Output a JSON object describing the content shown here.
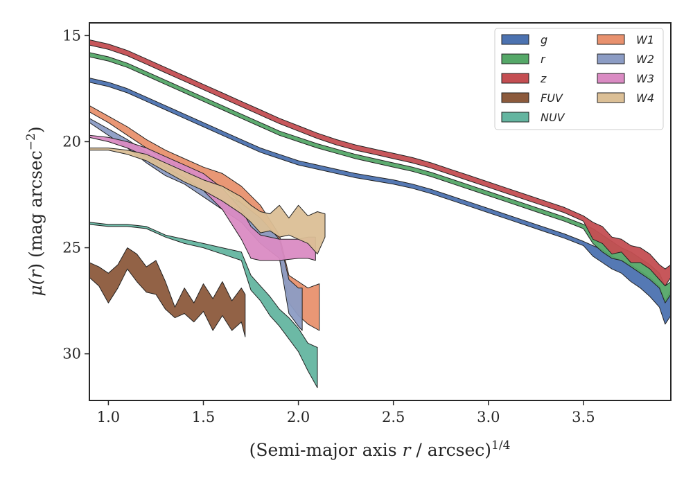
{
  "chart_data": {
    "type": "area",
    "xlabel": {
      "pre": "(Semi-major axis ",
      "var": "r",
      "post": " / arcsec)",
      "sup": "1/4"
    },
    "ylabel": {
      "pre": "μ(",
      "var": "r",
      "post": ") (mag arcsec",
      "sup": "−2",
      "end": ")"
    },
    "xlim": [
      0.9,
      3.96
    ],
    "ylim": [
      32.2,
      14.4
    ],
    "y_inverted": true,
    "x_ticks": [
      1.0,
      1.5,
      2.0,
      2.5,
      3.0,
      3.5
    ],
    "x_tick_labels": [
      "1.0",
      "1.5",
      "2.0",
      "2.5",
      "3.0",
      "3.5"
    ],
    "y_ticks": [
      15,
      20,
      25,
      30
    ],
    "y_tick_labels": [
      "15",
      "20",
      "25",
      "30"
    ],
    "grid": false,
    "legend": {
      "position": "top-right",
      "columns": 2
    },
    "series": [
      {
        "name": "g",
        "color": "#4c72b0",
        "x": [
          0.9,
          1.0,
          1.1,
          1.2,
          1.3,
          1.4,
          1.5,
          1.6,
          1.7,
          1.8,
          1.9,
          2.0,
          2.1,
          2.2,
          2.3,
          2.4,
          2.5,
          2.6,
          2.7,
          2.8,
          2.9,
          3.0,
          3.1,
          3.2,
          3.3,
          3.4,
          3.5,
          3.55,
          3.6,
          3.65,
          3.7,
          3.75,
          3.8,
          3.85,
          3.9,
          3.93,
          3.96
        ],
        "lo": [
          17.0,
          17.2,
          17.5,
          17.9,
          18.3,
          18.7,
          19.1,
          19.5,
          19.9,
          20.3,
          20.6,
          20.9,
          21.1,
          21.3,
          21.5,
          21.65,
          21.8,
          22.0,
          22.25,
          22.55,
          22.85,
          23.15,
          23.45,
          23.75,
          24.05,
          24.35,
          24.7,
          24.9,
          25.1,
          25.4,
          25.6,
          25.8,
          26.1,
          26.4,
          26.8,
          27.5,
          27.0
        ],
        "hi": [
          17.2,
          17.4,
          17.7,
          18.1,
          18.5,
          18.9,
          19.3,
          19.7,
          20.1,
          20.5,
          20.8,
          21.1,
          21.3,
          21.5,
          21.7,
          21.85,
          22.0,
          22.2,
          22.45,
          22.75,
          23.05,
          23.35,
          23.65,
          23.95,
          24.25,
          24.55,
          24.9,
          25.4,
          25.7,
          26.0,
          26.2,
          26.6,
          26.9,
          27.3,
          27.8,
          28.6,
          28.2
        ]
      },
      {
        "name": "r",
        "color": "#55a868",
        "x": [
          0.9,
          1.0,
          1.1,
          1.2,
          1.3,
          1.4,
          1.5,
          1.6,
          1.7,
          1.8,
          1.9,
          2.0,
          2.1,
          2.2,
          2.3,
          2.4,
          2.5,
          2.6,
          2.7,
          2.8,
          2.9,
          3.0,
          3.1,
          3.2,
          3.3,
          3.4,
          3.5,
          3.55,
          3.6,
          3.65,
          3.7,
          3.75,
          3.8,
          3.85,
          3.9,
          3.93,
          3.96
        ],
        "lo": [
          15.8,
          16.0,
          16.3,
          16.7,
          17.1,
          17.5,
          17.9,
          18.3,
          18.7,
          19.1,
          19.5,
          19.8,
          20.1,
          20.35,
          20.6,
          20.8,
          21.0,
          21.2,
          21.45,
          21.75,
          22.05,
          22.35,
          22.65,
          22.95,
          23.25,
          23.55,
          23.9,
          24.1,
          24.4,
          24.7,
          25.0,
          25.2,
          25.5,
          25.8,
          26.2,
          26.8,
          26.6
        ],
        "hi": [
          16.0,
          16.2,
          16.5,
          16.9,
          17.3,
          17.7,
          18.1,
          18.5,
          18.9,
          19.3,
          19.7,
          20.0,
          20.3,
          20.55,
          20.8,
          21.0,
          21.2,
          21.4,
          21.65,
          21.95,
          22.25,
          22.55,
          22.85,
          23.15,
          23.45,
          23.75,
          24.1,
          24.8,
          25.2,
          25.5,
          25.6,
          25.9,
          26.2,
          26.5,
          26.9,
          27.6,
          27.2
        ]
      },
      {
        "name": "z",
        "color": "#c44e52",
        "x": [
          0.9,
          1.0,
          1.1,
          1.2,
          1.3,
          1.4,
          1.5,
          1.6,
          1.7,
          1.8,
          1.9,
          2.0,
          2.1,
          2.2,
          2.3,
          2.4,
          2.5,
          2.6,
          2.7,
          2.8,
          2.9,
          3.0,
          3.1,
          3.2,
          3.3,
          3.4,
          3.5,
          3.55,
          3.6,
          3.65,
          3.7,
          3.75,
          3.8,
          3.85,
          3.9,
          3.93,
          3.96
        ],
        "lo": [
          15.2,
          15.4,
          15.7,
          16.1,
          16.5,
          16.9,
          17.3,
          17.7,
          18.1,
          18.5,
          18.9,
          19.25,
          19.6,
          19.9,
          20.15,
          20.35,
          20.55,
          20.75,
          21.0,
          21.3,
          21.6,
          21.9,
          22.2,
          22.5,
          22.8,
          23.1,
          23.5,
          23.8,
          24.0,
          24.5,
          24.6,
          24.9,
          25.0,
          25.3,
          25.8,
          26.0,
          25.8
        ],
        "hi": [
          15.45,
          15.65,
          15.95,
          16.35,
          16.75,
          17.15,
          17.55,
          17.95,
          18.35,
          18.75,
          19.15,
          19.5,
          19.85,
          20.15,
          20.4,
          20.6,
          20.8,
          21.0,
          21.25,
          21.55,
          21.85,
          22.15,
          22.45,
          22.75,
          23.05,
          23.35,
          23.75,
          24.6,
          24.8,
          25.3,
          25.2,
          25.7,
          25.7,
          26.0,
          26.5,
          26.8,
          26.4
        ]
      },
      {
        "name": "FUV",
        "color": "#8c5a3c",
        "x": [
          0.9,
          0.95,
          1.0,
          1.05,
          1.1,
          1.15,
          1.2,
          1.25,
          1.3,
          1.35,
          1.4,
          1.45,
          1.5,
          1.55,
          1.6,
          1.65,
          1.7,
          1.72
        ],
        "lo": [
          25.7,
          25.9,
          26.2,
          25.8,
          25.0,
          25.3,
          25.9,
          25.6,
          26.6,
          27.8,
          26.9,
          27.6,
          26.7,
          27.4,
          26.6,
          27.5,
          26.9,
          27.2
        ],
        "hi": [
          26.4,
          26.8,
          27.6,
          26.9,
          26.0,
          26.6,
          27.1,
          27.2,
          27.9,
          28.3,
          28.1,
          28.5,
          28.0,
          28.9,
          28.2,
          28.9,
          28.5,
          29.2
        ]
      },
      {
        "name": "NUV",
        "color": "#64b5a0",
        "x": [
          0.9,
          1.0,
          1.1,
          1.2,
          1.3,
          1.4,
          1.5,
          1.6,
          1.7,
          1.75,
          1.8,
          1.85,
          1.9,
          1.95,
          2.0,
          2.05,
          2.1
        ],
        "lo": [
          23.8,
          23.9,
          23.9,
          24.0,
          24.4,
          24.6,
          24.8,
          25.0,
          25.2,
          26.3,
          26.8,
          27.3,
          27.9,
          28.3,
          28.8,
          29.5,
          29.7
        ],
        "hi": [
          23.9,
          24.0,
          24.0,
          24.1,
          24.5,
          24.8,
          25.0,
          25.3,
          25.6,
          27.0,
          27.5,
          28.2,
          28.7,
          29.3,
          29.9,
          30.8,
          31.6
        ]
      },
      {
        "name": "W1",
        "color": "#e8916e",
        "x": [
          0.9,
          1.0,
          1.1,
          1.2,
          1.3,
          1.4,
          1.5,
          1.6,
          1.7,
          1.8,
          1.9,
          1.95,
          2.0,
          2.05,
          2.11
        ],
        "lo": [
          18.3,
          18.8,
          19.3,
          19.9,
          20.4,
          20.8,
          21.2,
          21.5,
          22.1,
          23.0,
          24.4,
          26.3,
          26.6,
          26.9,
          26.7
        ],
        "hi": [
          18.6,
          19.1,
          19.7,
          20.3,
          20.9,
          21.3,
          21.8,
          22.1,
          22.9,
          24.5,
          25.2,
          27.6,
          28.2,
          28.6,
          28.9
        ]
      },
      {
        "name": "W2",
        "color": "#8c9cc4",
        "x": [
          0.9,
          1.0,
          1.1,
          1.2,
          1.3,
          1.4,
          1.5,
          1.6,
          1.7,
          1.8,
          1.9,
          1.95,
          2.0,
          2.02
        ],
        "lo": [
          18.9,
          19.4,
          19.9,
          20.5,
          21.0,
          21.4,
          21.9,
          22.4,
          22.9,
          23.6,
          24.6,
          26.5,
          26.9,
          26.9
        ],
        "hi": [
          19.1,
          19.7,
          20.3,
          21.0,
          21.6,
          22.0,
          22.6,
          23.2,
          23.8,
          24.8,
          25.5,
          28.1,
          28.7,
          28.9
        ]
      },
      {
        "name": "W3",
        "color": "#da8bc3",
        "x": [
          0.9,
          1.0,
          1.1,
          1.2,
          1.3,
          1.4,
          1.5,
          1.6,
          1.7,
          1.75,
          1.8,
          1.9,
          2.0,
          2.05,
          2.09
        ],
        "lo": [
          19.7,
          19.8,
          20.0,
          20.3,
          20.7,
          21.1,
          21.5,
          22.2,
          23.2,
          24.0,
          24.4,
          24.6,
          24.6,
          24.5,
          24.5
        ],
        "hi": [
          19.8,
          20.0,
          20.3,
          20.7,
          21.2,
          21.7,
          22.3,
          23.2,
          24.6,
          25.5,
          25.6,
          25.6,
          25.5,
          25.5,
          25.6
        ]
      },
      {
        "name": "W4",
        "color": "#dbbf96",
        "x": [
          0.9,
          1.0,
          1.1,
          1.2,
          1.3,
          1.4,
          1.5,
          1.6,
          1.7,
          1.75,
          1.8,
          1.85,
          1.9,
          1.95,
          2.0,
          2.05,
          2.1,
          2.14
        ],
        "lo": [
          20.3,
          20.3,
          20.4,
          20.6,
          21.0,
          21.4,
          21.8,
          22.1,
          22.6,
          23.0,
          23.3,
          23.4,
          23.0,
          23.6,
          23.0,
          23.5,
          23.3,
          23.4
        ],
        "hi": [
          20.4,
          20.4,
          20.6,
          20.9,
          21.4,
          21.9,
          22.3,
          22.8,
          23.4,
          23.8,
          24.3,
          24.2,
          24.5,
          24.4,
          24.6,
          24.8,
          25.3,
          24.5
        ]
      }
    ]
  }
}
